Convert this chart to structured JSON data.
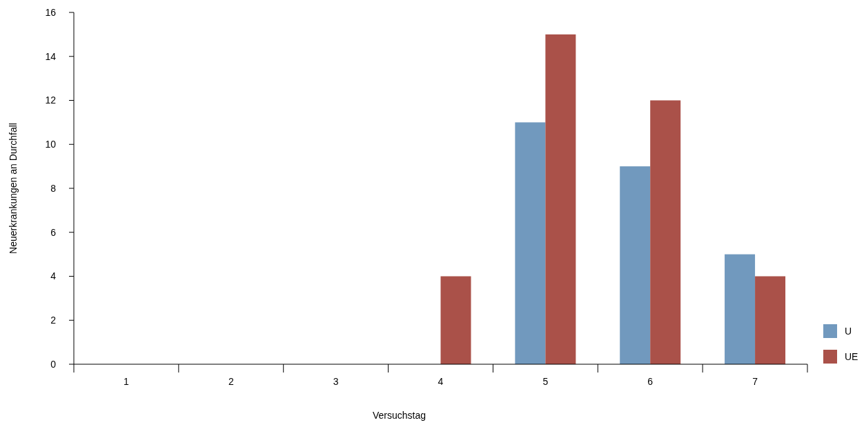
{
  "chart_data": {
    "type": "bar",
    "xlabel": "Versuchstag",
    "ylabel": "Neuerkrankungen an Durchfall",
    "categories": [
      "1",
      "2",
      "3",
      "4",
      "5",
      "6",
      "7"
    ],
    "series": [
      {
        "name": "U",
        "color": "#7199be",
        "values": [
          0,
          0,
          0,
          0,
          11,
          9,
          5
        ]
      },
      {
        "name": "UE",
        "color": "#aa5149",
        "values": [
          0,
          0,
          0,
          4,
          15,
          12,
          4
        ]
      }
    ],
    "ylim": [
      0,
      16
    ],
    "yticks": [
      0,
      2,
      4,
      6,
      8,
      10,
      12,
      14,
      16
    ],
    "grid": false,
    "legend": "bottom right"
  }
}
